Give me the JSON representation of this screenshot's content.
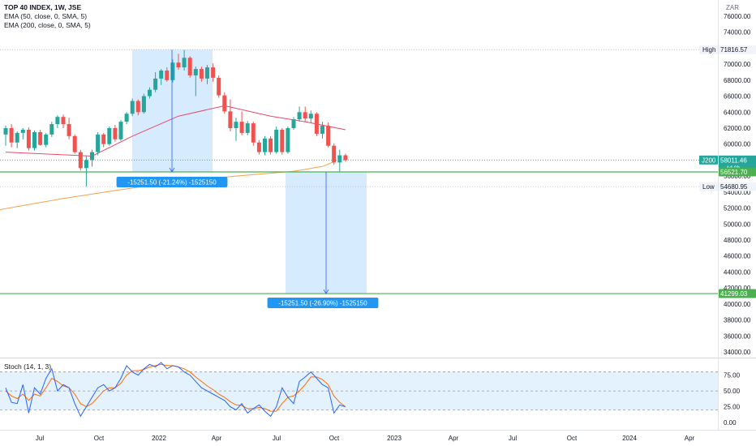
{
  "header": {
    "symbol_line": "TOP 40 INDEX, 1W, JSE",
    "ema50_line": "EMA (50, close, 0, SMA, 5)",
    "ema200_line": "EMA (200, close, 0, SMA, 5)",
    "currency": "ZAR"
  },
  "stoch_panel": {
    "label": "Stoch (14, 1, 3)",
    "y_ticks": [
      "75.00",
      "50.00",
      "25.00",
      "0.00"
    ]
  },
  "price_axis": {
    "ticks": [
      "76000.00",
      "74000.00",
      "72000.00",
      "70000.00",
      "68000.00",
      "66000.00",
      "64000.00",
      "62000.00",
      "60000.00",
      "58000.00",
      "56000.00",
      "54000.00",
      "52000.00",
      "50000.00",
      "48000.00",
      "46000.00",
      "44000.00",
      "42000.00",
      "40000.00",
      "38000.00",
      "36000.00",
      "34000.00"
    ],
    "high_label": "High",
    "high_value": "71816.57",
    "low_label": "Low",
    "low_value": "54680.95",
    "symbol_tag": "J200",
    "last_price": "58011.46",
    "countdown": "4d 9h",
    "support_level": "56521.70",
    "target_level": "41299.03"
  },
  "time_axis": {
    "labels": [
      "Jul",
      "Oct",
      "2022",
      "Apr",
      "Jul",
      "Oct",
      "2023",
      "Apr",
      "Jul",
      "Oct",
      "2024",
      "Apr"
    ]
  },
  "measures": [
    {
      "label": "-15251.50 (-21.24%) -1525150"
    },
    {
      "label": "-15251.50 (-26.90%) -1525150"
    }
  ],
  "colors": {
    "up": "#26a69a",
    "down": "#ef5350",
    "ema50": "#e84a6a",
    "ema200": "#f7a24a",
    "level_line": "#4caf50",
    "measure_fill": "#bbdefb",
    "measure_line": "#2962ff",
    "measure_label_bg": "#2196f3",
    "stoch_k": "#2962ff",
    "stoch_d": "#ff6d00",
    "stoch_band": "#e3f2fd"
  },
  "chart_data": {
    "type": "candlestick",
    "title": "TOP 40 INDEX, 1W, JSE",
    "currency": "ZAR",
    "ylim": [
      34000,
      76000
    ],
    "candles": [
      {
        "o": 61200,
        "h": 62300,
        "l": 59800,
        "c": 62000
      },
      {
        "o": 62000,
        "h": 62500,
        "l": 59600,
        "c": 60200
      },
      {
        "o": 60200,
        "h": 61600,
        "l": 59500,
        "c": 61400
      },
      {
        "o": 61400,
        "h": 62000,
        "l": 60600,
        "c": 61800
      },
      {
        "o": 61800,
        "h": 62100,
        "l": 59200,
        "c": 59500
      },
      {
        "o": 59500,
        "h": 61700,
        "l": 59200,
        "c": 61500
      },
      {
        "o": 61500,
        "h": 61800,
        "l": 59800,
        "c": 59900
      },
      {
        "o": 59900,
        "h": 61400,
        "l": 59600,
        "c": 61200
      },
      {
        "o": 61200,
        "h": 62800,
        "l": 60900,
        "c": 62500
      },
      {
        "o": 62500,
        "h": 63600,
        "l": 62000,
        "c": 63400
      },
      {
        "o": 63400,
        "h": 63700,
        "l": 62000,
        "c": 62500
      },
      {
        "o": 62500,
        "h": 63300,
        "l": 60600,
        "c": 61000
      },
      {
        "o": 61000,
        "h": 61200,
        "l": 58800,
        "c": 59000
      },
      {
        "o": 59000,
        "h": 59300,
        "l": 56700,
        "c": 57000
      },
      {
        "o": 57000,
        "h": 58500,
        "l": 54700,
        "c": 58000
      },
      {
        "o": 58000,
        "h": 59300,
        "l": 57200,
        "c": 59000
      },
      {
        "o": 59000,
        "h": 61500,
        "l": 58600,
        "c": 61200
      },
      {
        "o": 61200,
        "h": 61400,
        "l": 59600,
        "c": 60000
      },
      {
        "o": 60000,
        "h": 62200,
        "l": 59800,
        "c": 62000
      },
      {
        "o": 62000,
        "h": 62400,
        "l": 60300,
        "c": 60600
      },
      {
        "o": 60600,
        "h": 63000,
        "l": 60400,
        "c": 62800
      },
      {
        "o": 62800,
        "h": 64000,
        "l": 62500,
        "c": 63800
      },
      {
        "o": 63800,
        "h": 65700,
        "l": 63500,
        "c": 65400
      },
      {
        "o": 65400,
        "h": 65600,
        "l": 63600,
        "c": 64000
      },
      {
        "o": 64000,
        "h": 66300,
        "l": 63800,
        "c": 66000
      },
      {
        "o": 66000,
        "h": 67100,
        "l": 65700,
        "c": 66800
      },
      {
        "o": 66800,
        "h": 69000,
        "l": 66500,
        "c": 68200
      },
      {
        "o": 68200,
        "h": 69400,
        "l": 67400,
        "c": 69200
      },
      {
        "o": 69200,
        "h": 69600,
        "l": 67800,
        "c": 68000
      },
      {
        "o": 68000,
        "h": 70600,
        "l": 67700,
        "c": 70200
      },
      {
        "o": 70200,
        "h": 71300,
        "l": 69300,
        "c": 69600
      },
      {
        "o": 69600,
        "h": 71800,
        "l": 69200,
        "c": 70800
      },
      {
        "o": 70800,
        "h": 71000,
        "l": 68300,
        "c": 68600
      },
      {
        "o": 68600,
        "h": 69700,
        "l": 66000,
        "c": 69400
      },
      {
        "o": 69400,
        "h": 69700,
        "l": 67800,
        "c": 68200
      },
      {
        "o": 68200,
        "h": 69900,
        "l": 67500,
        "c": 69600
      },
      {
        "o": 69600,
        "h": 70100,
        "l": 67800,
        "c": 68300
      },
      {
        "o": 68300,
        "h": 68600,
        "l": 65800,
        "c": 66100
      },
      {
        "o": 66100,
        "h": 66500,
        "l": 63800,
        "c": 64100
      },
      {
        "o": 64100,
        "h": 65600,
        "l": 61600,
        "c": 62000
      },
      {
        "o": 62000,
        "h": 63300,
        "l": 60400,
        "c": 62800
      },
      {
        "o": 62800,
        "h": 64100,
        "l": 61100,
        "c": 61400
      },
      {
        "o": 61400,
        "h": 62900,
        "l": 61100,
        "c": 62600
      },
      {
        "o": 62600,
        "h": 62800,
        "l": 59800,
        "c": 60200
      },
      {
        "o": 60200,
        "h": 60500,
        "l": 58700,
        "c": 59000
      },
      {
        "o": 59000,
        "h": 61000,
        "l": 58600,
        "c": 60700
      },
      {
        "o": 60700,
        "h": 61000,
        "l": 58700,
        "c": 59000
      },
      {
        "o": 59000,
        "h": 62200,
        "l": 58800,
        "c": 61800
      },
      {
        "o": 61800,
        "h": 62000,
        "l": 58700,
        "c": 59000
      },
      {
        "o": 59000,
        "h": 62200,
        "l": 58800,
        "c": 62000
      },
      {
        "o": 62000,
        "h": 63400,
        "l": 61800,
        "c": 63100
      },
      {
        "o": 63100,
        "h": 64700,
        "l": 62800,
        "c": 64000
      },
      {
        "o": 64000,
        "h": 64700,
        "l": 62800,
        "c": 63200
      },
      {
        "o": 63200,
        "h": 64200,
        "l": 62700,
        "c": 63800
      },
      {
        "o": 63800,
        "h": 64000,
        "l": 61000,
        "c": 61300
      },
      {
        "o": 61300,
        "h": 62800,
        "l": 60700,
        "c": 62300
      },
      {
        "o": 62300,
        "h": 62700,
        "l": 59600,
        "c": 59800
      },
      {
        "o": 59800,
        "h": 60100,
        "l": 57400,
        "c": 57700
      },
      {
        "o": 57700,
        "h": 59300,
        "l": 56500,
        "c": 58600
      },
      {
        "o": 58600,
        "h": 58800,
        "l": 57800,
        "c": 58000
      }
    ],
    "ema50": [
      [
        0,
        59000
      ],
      [
        15,
        58500
      ],
      [
        22,
        61000
      ],
      [
        30,
        63500
      ],
      [
        38,
        64800
      ],
      [
        46,
        63500
      ],
      [
        52,
        62800
      ],
      [
        59,
        61800
      ]
    ],
    "ema200": [
      [
        -1,
        51800
      ],
      [
        10,
        53200
      ],
      [
        20,
        54300
      ],
      [
        30,
        55300
      ],
      [
        40,
        56000
      ],
      [
        50,
        56600
      ],
      [
        55,
        57200
      ],
      [
        57,
        57800
      ]
    ],
    "levels": [
      56521.7,
      41299.03
    ],
    "high": 71816.57,
    "low": 54680.95,
    "last": 58011.46,
    "stoch_k": [
      55,
      32,
      30,
      60,
      15,
      55,
      45,
      70,
      85,
      50,
      60,
      55,
      30,
      10,
      25,
      40,
      55,
      60,
      50,
      55,
      70,
      90,
      80,
      75,
      85,
      92,
      88,
      95,
      85,
      90,
      88,
      80,
      75,
      65,
      55,
      50,
      45,
      40,
      35,
      25,
      20,
      30,
      15,
      22,
      28,
      18,
      10,
      25,
      55,
      40,
      30,
      65,
      72,
      80,
      70,
      60,
      55,
      15,
      28,
      25
    ],
    "stoch_d": [
      50,
      42,
      38,
      45,
      35,
      45,
      42,
      55,
      70,
      65,
      58,
      55,
      45,
      30,
      25,
      30,
      40,
      50,
      55,
      55,
      62,
      75,
      82,
      82,
      84,
      88,
      90,
      92,
      90,
      90,
      88,
      85,
      80,
      72,
      65,
      58,
      52,
      45,
      40,
      33,
      28,
      27,
      22,
      22,
      24,
      22,
      18,
      18,
      30,
      40,
      42,
      50,
      60,
      72,
      72,
      68,
      60,
      42,
      32,
      25
    ],
    "stoch_ylim": [
      -5,
      95
    ],
    "stoch_band": [
      20,
      80
    ],
    "x_labels": [
      "Jul",
      "Oct",
      "2022",
      "Apr",
      "Jul",
      "Oct",
      "2023",
      "Apr",
      "Jul",
      "Oct",
      "2024",
      "Apr"
    ]
  }
}
